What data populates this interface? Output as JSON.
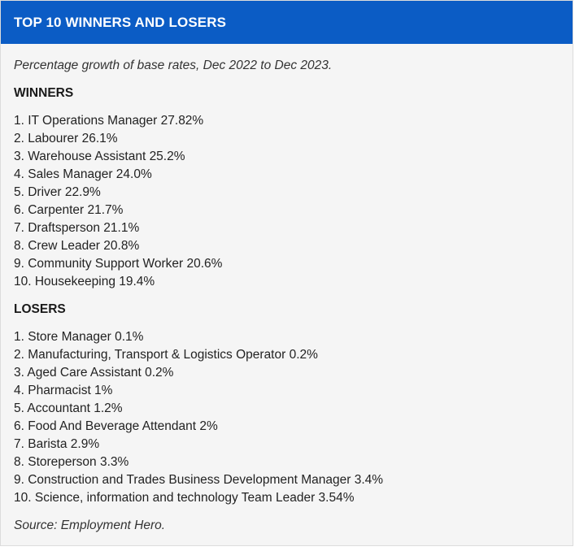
{
  "header": {
    "title": "TOP 10 WINNERS AND LOSERS"
  },
  "subtitle": "Percentage growth of base rates, Dec 2022 to Dec 2023.",
  "winners": {
    "heading": "WINNERS",
    "items": [
      "1. IT Operations Manager 27.82%",
      "2. Labourer 26.1%",
      "3. Warehouse Assistant 25.2%",
      "4. Sales Manager 24.0%",
      "5. Driver 22.9%",
      "6. Carpenter 21.7%",
      "7. Draftsperson 21.1%",
      "8. Crew Leader 20.8%",
      "9. Community Support Worker 20.6%",
      "10. Housekeeping 19.4%"
    ]
  },
  "losers": {
    "heading": "LOSERS",
    "items": [
      "1. Store Manager 0.1%",
      "2. Manufacturing, Transport & Logistics Operator 0.2%",
      "3. Aged Care Assistant 0.2%",
      "4. Pharmacist 1%",
      "5. Accountant 1.2%",
      "6. Food And Beverage Attendant 2%",
      "7. Barista 2.9%",
      "8. Storeperson 3.3%",
      "9. Construction and Trades Business Development Manager 3.4%",
      "10. Science, information and technology Team Leader 3.54%"
    ]
  },
  "source": "Source: Employment Hero.",
  "colors": {
    "header_bg": "#0b5cc5",
    "header_text": "#ffffff",
    "card_bg": "#f5f5f5"
  }
}
